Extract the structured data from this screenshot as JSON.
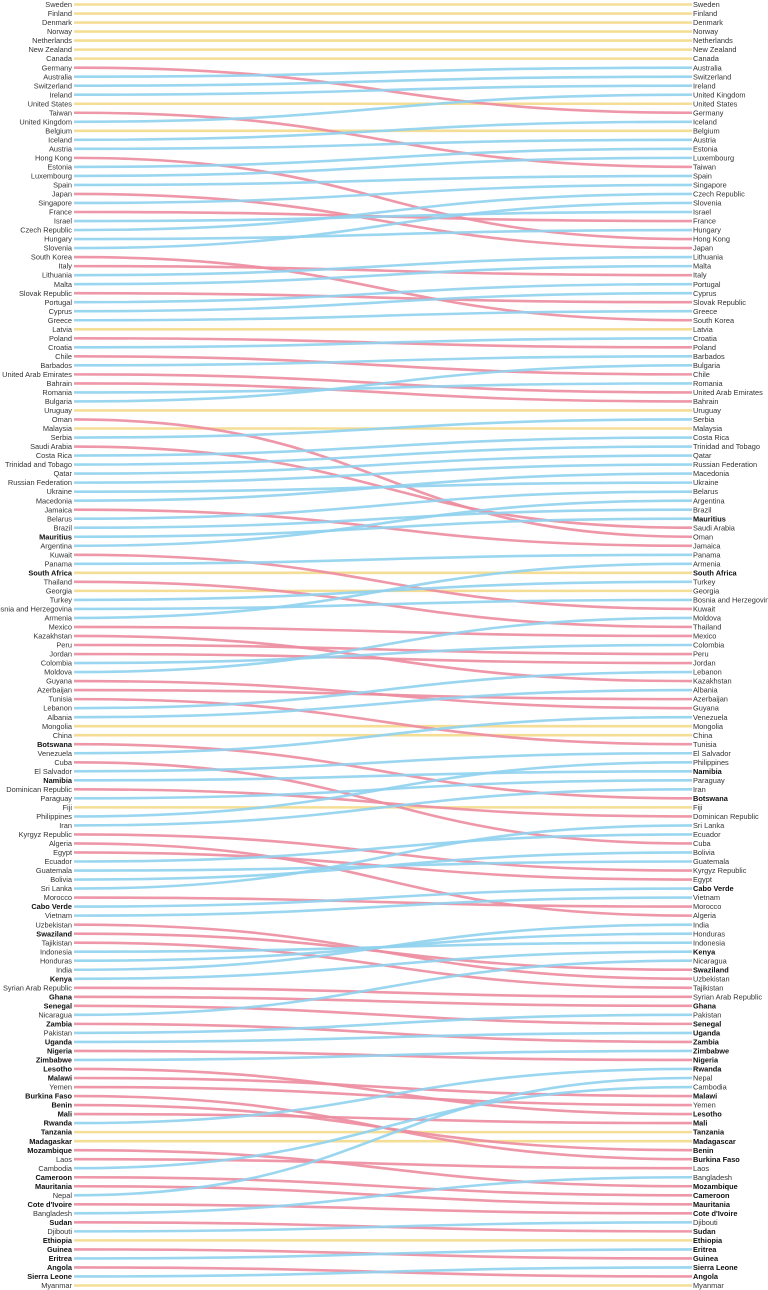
{
  "chart_data": {
    "type": "slope",
    "title": "",
    "colors": {
      "unchanged": "#f3d98a",
      "improved": "#8fd2ee",
      "declined": "#ec8c9e"
    },
    "bold_countries": [
      "Mauritius",
      "South Africa",
      "Botswana",
      "Namibia",
      "Cabo Verde",
      "Swaziland",
      "Kenya",
      "Ghana",
      "Senegal",
      "Zambia",
      "Uganda",
      "Nigeria",
      "Zimbabwe",
      "Lesotho",
      "Malawi",
      "Burkina Faso",
      "Benin",
      "Mali",
      "Rwanda",
      "Tanzania",
      "Madagaskar",
      "Madagascar",
      "Mozambique",
      "Cameroon",
      "Mauritania",
      "Cote d'Ivoire",
      "Sudan",
      "Ethiopia",
      "Guinea",
      "Eritrea",
      "Angola",
      "Sierra Leone"
    ],
    "left": [
      "Sweden",
      "Finland",
      "Denmark",
      "Norway",
      "Netherlands",
      "New Zealand",
      "Canada",
      "Germany",
      "Australia",
      "Switzerland",
      "Ireland",
      "United States",
      "Taiwan",
      "United Kingdom",
      "Belgium",
      "Iceland",
      "Austria",
      "Hong Kong",
      "Estonia",
      "Luxembourg",
      "Spain",
      "Japan",
      "Singapore",
      "France",
      "Israel",
      "Czech Republic",
      "Hungary",
      "Slovenia",
      "South Korea",
      "Italy",
      "Lithuania",
      "Malta",
      "Slovak Republic",
      "Portugal",
      "Cyprus",
      "Greece",
      "Latvia",
      "Poland",
      "Croatia",
      "Chile",
      "Barbados",
      "United Arab Emirates",
      "Bahrain",
      "Romania",
      "Bulgaria",
      "Uruguay",
      "Oman",
      "Malaysia",
      "Serbia",
      "Saudi Arabia",
      "Costa Rica",
      "Trinidad and Tobago",
      "Qatar",
      "Russian Federation",
      "Ukraine",
      "Macedonia",
      "Jamaica",
      "Belarus",
      "Brazil",
      "Mauritius",
      "Argentina",
      "Kuwait",
      "Panama",
      "South Africa",
      "Thailand",
      "Georgia",
      "Turkey",
      "Bosnia and Herzegovina",
      "Armenia",
      "Mexico",
      "Kazakhstan",
      "Peru",
      "Jordan",
      "Colombia",
      "Moldova",
      "Guyana",
      "Azerbaijan",
      "Tunisia",
      "Lebanon",
      "Albania",
      "Mongolia",
      "China",
      "Botswana",
      "Venezuela",
      "Cuba",
      "El Salvador",
      "Namibia",
      "Dominican Republic",
      "Paraguay",
      "Fiji",
      "Philippines",
      "Iran",
      "Kyrgyz Republic",
      "Algeria",
      "Egypt",
      "Ecuador",
      "Guatemala",
      "Bolivia",
      "Sri Lanka",
      "Morocco",
      "Cabo Verde",
      "Vietnam",
      "Uzbekistan",
      "Swaziland",
      "Tajikistan",
      "Indonesia",
      "Honduras",
      "India",
      "Kenya",
      "Syrian Arab Republic",
      "Ghana",
      "Senegal",
      "Nicaragua",
      "Zambia",
      "Pakistan",
      "Uganda",
      "Nigeria",
      "Zimbabwe",
      "Lesotho",
      "Malawi",
      "Yemen",
      "Burkina Faso",
      "Benin",
      "Mali",
      "Rwanda",
      "Tanzania",
      "Madagaskar",
      "Mozambique",
      "Laos",
      "Cambodia",
      "Cameroon",
      "Mauritania",
      "Nepal",
      "Cote d'Ivoire",
      "Bangladesh",
      "Sudan",
      "Djibouti",
      "Ethiopia",
      "Guinea",
      "Eritrea",
      "Angola",
      "Sierra Leone",
      "Myanmar"
    ],
    "right": [
      "Sweden",
      "Finland",
      "Denmark",
      "Norway",
      "Netherlands",
      "New Zealand",
      "Canada",
      "Australia",
      "Switzerland",
      "Ireland",
      "United Kingdom",
      "United States",
      "Germany",
      "Iceland",
      "Belgium",
      "Austria",
      "Estonia",
      "Luxembourg",
      "Taiwan",
      "Spain",
      "Singapore",
      "Czech Republic",
      "Slovenia",
      "Israel",
      "France",
      "Hungary",
      "Hong Kong",
      "Japan",
      "Lithuania",
      "Malta",
      "Italy",
      "Portugal",
      "Cyprus",
      "Slovak Republic",
      "Greece",
      "South Korea",
      "Latvia",
      "Croatia",
      "Poland",
      "Barbados",
      "Bulgaria",
      "Chile",
      "Romania",
      "United Arab Emirates",
      "Bahrain",
      "Uruguay",
      "Serbia",
      "Malaysia",
      "Costa Rica",
      "Trinidad and Tobago",
      "Qatar",
      "Russian Federation",
      "Macedonia",
      "Ukraine",
      "Belarus",
      "Argentina",
      "Brazil",
      "Mauritius",
      "Saudi Arabia",
      "Oman",
      "Jamaica",
      "Panama",
      "Armenia",
      "South Africa",
      "Turkey",
      "Georgia",
      "Bosnia and Herzegovina",
      "Kuwait",
      "Moldova",
      "Thailand",
      "Mexico",
      "Colombia",
      "Peru",
      "Jordan",
      "Lebanon",
      "Kazakhstan",
      "Albania",
      "Azerbaijan",
      "Guyana",
      "Venezuela",
      "Mongolia",
      "China",
      "Tunisia",
      "El Salvador",
      "Philippines",
      "Namibia",
      "Paraguay",
      "Iran",
      "Botswana",
      "Fiji",
      "Dominican Republic",
      "Sri Lanka",
      "Ecuador",
      "Cuba",
      "Bolivia",
      "Guatemala",
      "Kyrgyz Republic",
      "Egypt",
      "Cabo Verde",
      "Vietnam",
      "Morocco",
      "Algeria",
      "India",
      "Honduras",
      "Indonesia",
      "Kenya",
      "Nicaragua",
      "Swaziland",
      "Uzbekistan",
      "Tajikistan",
      "Syrian Arab Republic",
      "Ghana",
      "Pakistan",
      "Senegal",
      "Uganda",
      "Zambia",
      "Zimbabwe",
      "Nigeria",
      "Rwanda",
      "Nepal",
      "Cambodia",
      "Malawi",
      "Yemen",
      "Lesotho",
      "Mali",
      "Tanzania",
      "Madagascar",
      "Benin",
      "Burkina Faso",
      "Laos",
      "Bangladesh",
      "Mozambique",
      "Cameroon",
      "Mauritania",
      "Cote d'Ivoire",
      "Djibouti",
      "Sudan",
      "Ethiopia",
      "Eritrea",
      "Guinea",
      "Sierra Leone",
      "Angola",
      "Myanmar"
    ]
  }
}
